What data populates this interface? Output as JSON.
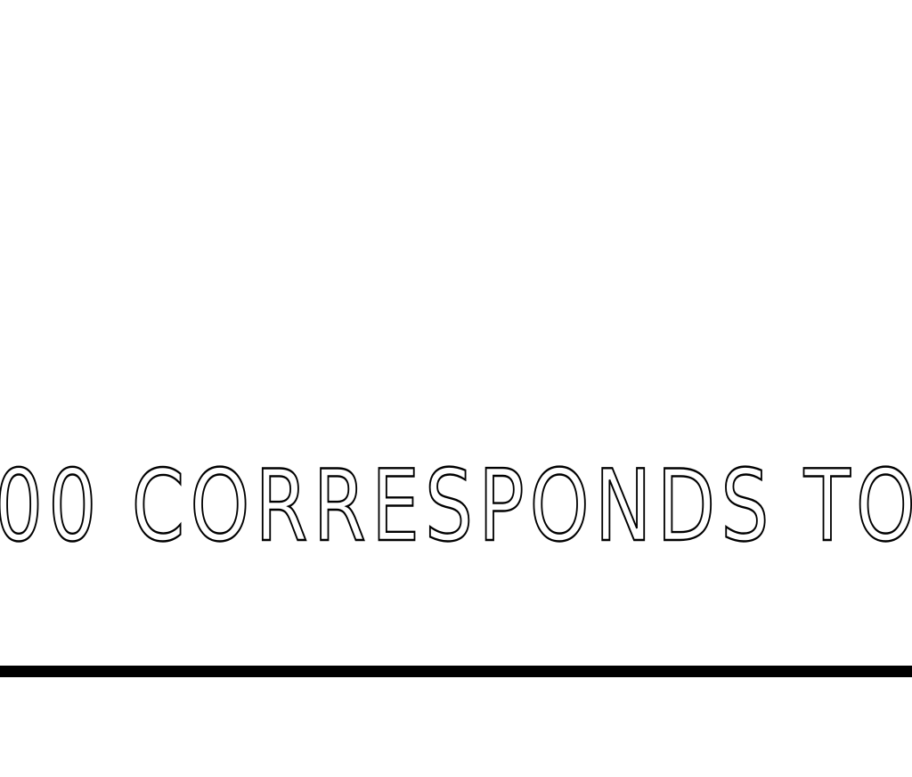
{
  "drawing": {
    "note_text": "00 CORRESPONDS TO",
    "text_color": "#000000",
    "rule_color": "#000000",
    "background_color": "#ffffff"
  }
}
